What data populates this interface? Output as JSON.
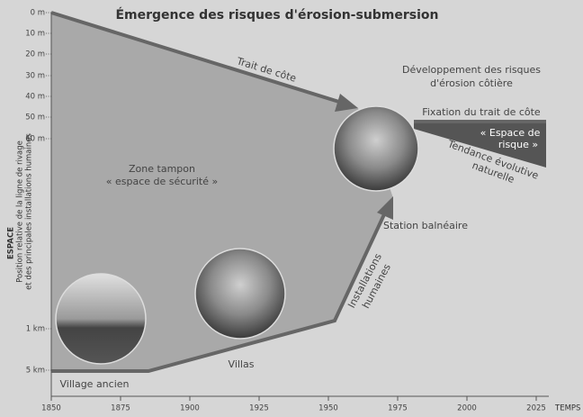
{
  "title": "Émergence des risques d'érosion-submersion",
  "y_axis": {
    "name": "ESPACE",
    "title_lines": [
      "Position relative de la ligne de rivage",
      "et des principales installations humaines"
    ],
    "ticks": [
      "0 m",
      "10 m",
      "20 m",
      "30 m",
      "40 m",
      "50 m",
      "60 m",
      "1 km",
      "5 km"
    ]
  },
  "x_axis": {
    "name": "TEMPS",
    "ticks": [
      "1850",
      "1875",
      "1900",
      "1925",
      "1950",
      "1975",
      "2000",
      "2025"
    ]
  },
  "labels": {
    "trait": "Trait de côte",
    "developpement": [
      "Développement des risques",
      "d'érosion côtière"
    ],
    "fixation": "Fixation du trait de côte",
    "espace_risque": [
      "« Espace de",
      "risque »"
    ],
    "tendance": [
      "Tendance évolutive",
      "naturelle"
    ],
    "zone": [
      "Zone tampon",
      "« espace de sécurité »"
    ],
    "station": "Station balnéaire",
    "installations": [
      "Installations",
      "humaines"
    ],
    "villas": "Villas",
    "village": "Village ancien"
  }
}
